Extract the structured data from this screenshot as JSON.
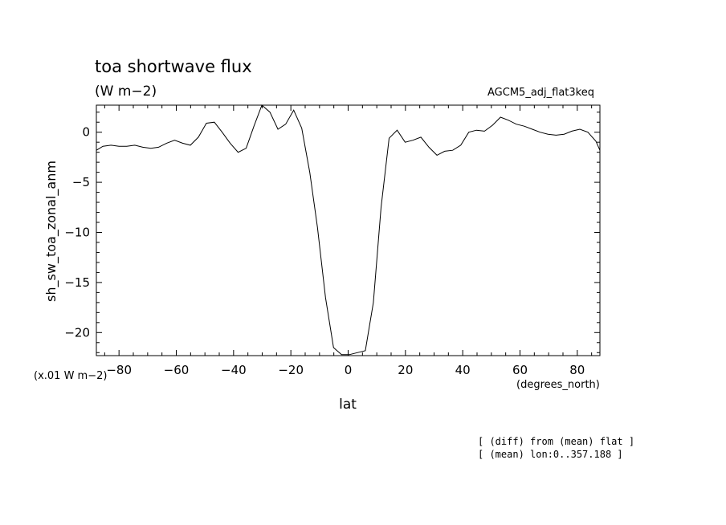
{
  "chart_data": {
    "type": "line",
    "title": "toa shortwave flux",
    "units": "(W m−2)",
    "dataset": "AGCM5_adj_flat3keq",
    "ylabel": "sh_sw_toa_zonal_anm",
    "yscale_note": "(x.01 W m−2)",
    "xlabel": "lat",
    "xunits": "(degrees_north)",
    "notes": [
      "[ (diff) from (mean) flat ]",
      "[ (mean) lon:0..357.188 ]"
    ],
    "xlim": [
      -87.9,
      87.9
    ],
    "ylim": [
      -22.3,
      2.7
    ],
    "x_ticks": [
      -80,
      -60,
      -40,
      -20,
      0,
      20,
      40,
      60,
      80
    ],
    "x_tick_labels": [
      "−80",
      "−60",
      "−40",
      "−20",
      "0",
      "20",
      "40",
      "60",
      "80"
    ],
    "y_ticks": [
      0,
      -5,
      -10,
      -15,
      -20
    ],
    "y_tick_labels": [
      "0",
      "−5",
      "−10",
      "−15",
      "−20"
    ],
    "grid": false,
    "series": [
      {
        "x": [
          -87.9,
          -85.6,
          -82.8,
          -80.0,
          -77.3,
          -74.5,
          -71.7,
          -68.9,
          -66.2,
          -63.4,
          -60.6,
          -57.8,
          -55.1,
          -52.3,
          -49.5,
          -46.7,
          -44.0,
          -41.2,
          -38.4,
          -35.6,
          -32.9,
          -30.1,
          -27.3,
          -24.5,
          -21.8,
          -19.0,
          -16.2,
          -13.4,
          -10.7,
          -7.9,
          -5.1,
          -2.3,
          0.4,
          3.2,
          6.0,
          8.8,
          11.5,
          14.3,
          17.1,
          19.9,
          22.6,
          25.4,
          28.2,
          31.0,
          33.7,
          36.5,
          39.3,
          42.1,
          44.8,
          47.6,
          50.4,
          53.2,
          55.9,
          58.7,
          61.5,
          64.3,
          67.0,
          69.8,
          72.6,
          75.4,
          78.1,
          80.9,
          83.7,
          86.5,
          87.9
        ],
        "y": [
          -1.8,
          -1.4,
          -1.3,
          -1.4,
          -1.4,
          -1.3,
          -1.5,
          -1.6,
          -1.5,
          -1.1,
          -0.8,
          -1.1,
          -1.3,
          -0.5,
          0.9,
          1.0,
          0.0,
          -1.1,
          -2.0,
          -1.6,
          0.6,
          2.7,
          2.0,
          0.3,
          0.8,
          2.2,
          0.4,
          -4.0,
          -9.5,
          -16.5,
          -21.5,
          -22.2,
          -22.2,
          -22.0,
          -21.8,
          -17.0,
          -7.5,
          -0.6,
          0.2,
          -1.0,
          -0.8,
          -0.5,
          -1.5,
          -2.3,
          -1.9,
          -1.8,
          -1.3,
          0.0,
          0.2,
          0.1,
          0.7,
          1.5,
          1.2,
          0.8,
          0.6,
          0.3,
          0.0,
          -0.2,
          -0.3,
          -0.2,
          0.1,
          0.3,
          0.0,
          -0.9,
          -1.8
        ]
      }
    ]
  }
}
